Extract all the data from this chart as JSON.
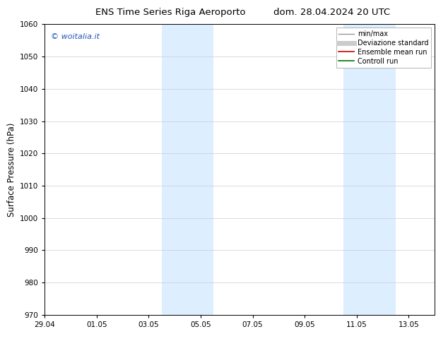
{
  "title_left": "ENS Time Series Riga Aeroporto",
  "title_right": "dom. 28.04.2024 20 UTC",
  "ylabel": "Surface Pressure (hPa)",
  "ylim": [
    970,
    1060
  ],
  "yticks": [
    970,
    980,
    990,
    1000,
    1010,
    1020,
    1030,
    1040,
    1050,
    1060
  ],
  "xtick_labels": [
    "29.04",
    "01.05",
    "03.05",
    "05.05",
    "07.05",
    "09.05",
    "11.05",
    "13.05"
  ],
  "xtick_positions": [
    0,
    2,
    4,
    6,
    8,
    10,
    12,
    14
  ],
  "xlim": [
    0,
    15
  ],
  "shaded_bands": [
    {
      "start": 4.5,
      "end": 5.5
    },
    {
      "start": 5.5,
      "end": 6.5
    },
    {
      "start": 11.5,
      "end": 12.5
    },
    {
      "start": 12.5,
      "end": 13.5
    }
  ],
  "shade_color": "#ddeeff",
  "watermark_text": "© woitalia.it",
  "watermark_color": "#2255bb",
  "legend_items": [
    {
      "label": "min/max",
      "color": "#999999",
      "lw": 1.0
    },
    {
      "label": "Deviazione standard",
      "color": "#cccccc",
      "lw": 5.0
    },
    {
      "label": "Ensemble mean run",
      "color": "#cc0000",
      "lw": 1.2
    },
    {
      "label": "Controll run",
      "color": "#007700",
      "lw": 1.2
    }
  ],
  "background_color": "#ffffff",
  "grid_color": "#cccccc",
  "tick_label_fontsize": 7.5,
  "axis_label_fontsize": 8.5,
  "title_fontsize": 9.5
}
